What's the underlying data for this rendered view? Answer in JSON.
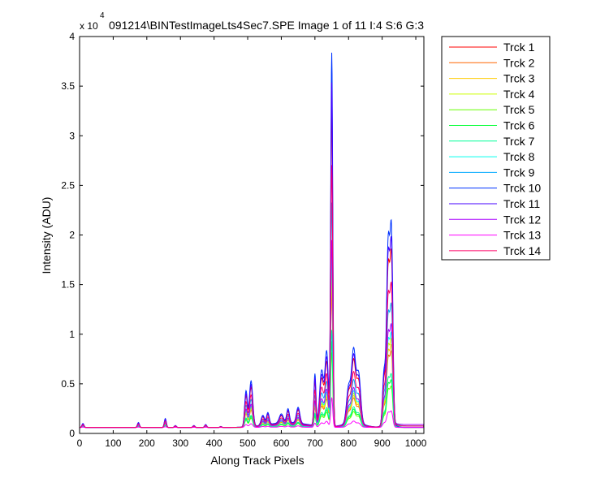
{
  "chart_data": {
    "type": "line",
    "title": "091214\\BINTestImageLts4Sec7.SPE  Image 1 of 11  I:4  S:6  G:3",
    "xlabel": "Along Track Pixels",
    "ylabel": "Intensity (ADU)",
    "y_multiplier_label": "x 10",
    "y_multiplier_exponent": "4",
    "xlim": [
      0,
      1024
    ],
    "ylim": [
      0,
      4
    ],
    "x_ticks": [
      0,
      100,
      200,
      300,
      400,
      500,
      600,
      700,
      800,
      900,
      1000
    ],
    "y_ticks": [
      0,
      0.5,
      1,
      1.5,
      2,
      2.5,
      3,
      3.5,
      4
    ],
    "x_tick_labels": [
      "0",
      "100",
      "200",
      "300",
      "400",
      "500",
      "600",
      "700",
      "800",
      "900",
      "1000"
    ],
    "y_tick_labels": [
      "0",
      "0.5",
      "1",
      "1.5",
      "2",
      "2.5",
      "3",
      "3.5",
      "4"
    ],
    "grid": false,
    "legend_position": "outside-right-top",
    "baseline": 0.06,
    "peaks": [
      [
        10,
        0.1,
        3
      ],
      [
        175,
        0.11,
        3
      ],
      [
        255,
        0.15,
        3
      ],
      [
        285,
        0.08,
        3
      ],
      [
        340,
        0.08,
        3
      ],
      [
        375,
        0.09,
        3
      ],
      [
        420,
        0.07,
        3
      ],
      [
        495,
        0.42,
        4
      ],
      [
        510,
        0.52,
        5
      ],
      [
        545,
        0.16,
        5
      ],
      [
        560,
        0.18,
        4
      ],
      [
        600,
        0.15,
        6
      ],
      [
        620,
        0.2,
        4
      ],
      [
        650,
        0.22,
        5
      ],
      [
        700,
        0.58,
        3
      ],
      [
        720,
        0.62,
        6
      ],
      [
        735,
        0.8,
        5
      ],
      [
        750,
        3.82,
        3
      ],
      [
        800,
        0.42,
        6
      ],
      [
        815,
        0.78,
        6
      ],
      [
        830,
        0.55,
        6
      ],
      [
        905,
        0.55,
        4
      ],
      [
        918,
        1.88,
        5
      ],
      [
        928,
        1.8,
        4
      ]
    ],
    "series": [
      {
        "name": "Trck 1",
        "color": "#ff0000",
        "scale": 0.86
      },
      {
        "name": "Trck 2",
        "color": "#ff6600",
        "scale": 0.37
      },
      {
        "name": "Trck 3",
        "color": "#ffcc00",
        "scale": 0.4
      },
      {
        "name": "Trck 4",
        "color": "#ccff00",
        "scale": 0.43
      },
      {
        "name": "Trck 5",
        "color": "#66ff00",
        "scale": 0.2
      },
      {
        "name": "Trck 6",
        "color": "#00ff33",
        "scale": 0.23
      },
      {
        "name": "Trck 7",
        "color": "#00ff99",
        "scale": 0.26
      },
      {
        "name": "Trck 8",
        "color": "#00ffee",
        "scale": 0.46
      },
      {
        "name": "Trck 9",
        "color": "#00aaff",
        "scale": 0.6
      },
      {
        "name": "Trck 10",
        "color": "#0033ff",
        "scale": 1.0
      },
      {
        "name": "Trck 11",
        "color": "#4400ff",
        "scale": 0.92
      },
      {
        "name": "Trck 12",
        "color": "#aa00ff",
        "scale": 0.5
      },
      {
        "name": "Trck 13",
        "color": "#ff00ff",
        "scale": 0.08
      },
      {
        "name": "Trck 14",
        "color": "#ff0066",
        "scale": 0.7
      }
    ]
  }
}
